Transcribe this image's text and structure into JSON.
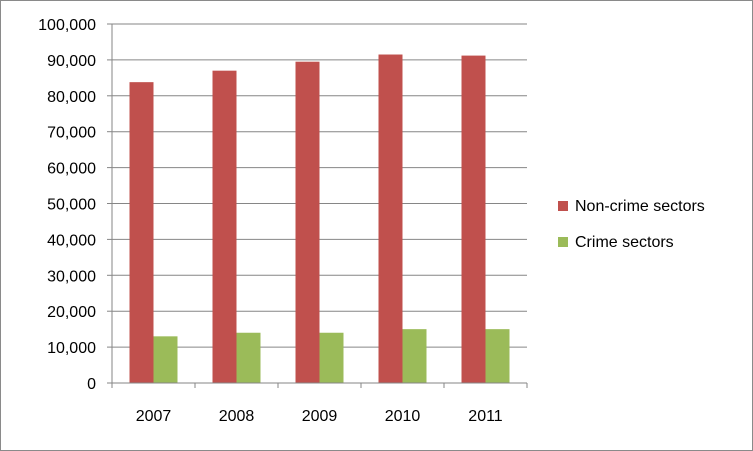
{
  "chart_data": {
    "type": "bar",
    "categories": [
      "2007",
      "2008",
      "2009",
      "2010",
      "2011"
    ],
    "series": [
      {
        "name": "Non-crime sectors",
        "color": "#c0504d",
        "values": [
          83800,
          87000,
          89500,
          91500,
          91200
        ]
      },
      {
        "name": "Crime sectors",
        "color": "#9bbb59",
        "values": [
          13000,
          14000,
          14000,
          15000,
          15000
        ]
      }
    ],
    "y_ticks": [
      "0",
      "10,000",
      "20,000",
      "30,000",
      "40,000",
      "50,000",
      "60,000",
      "70,000",
      "80,000",
      "90,000",
      "100,000"
    ],
    "ylim": [
      0,
      100000
    ],
    "grid": true,
    "legend_position": "right"
  }
}
